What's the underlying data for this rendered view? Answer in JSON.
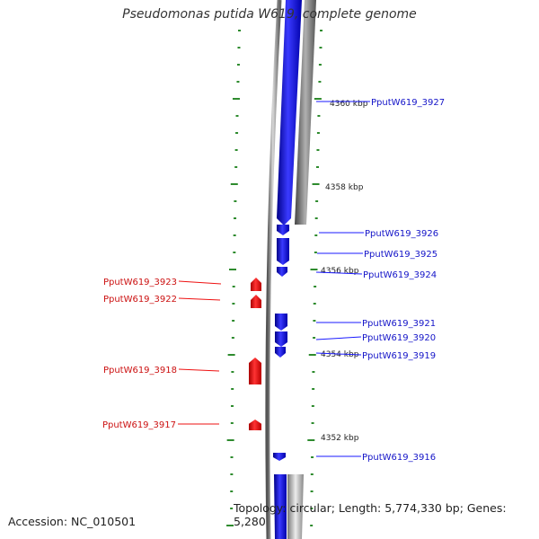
{
  "title": "Pseudomonas putida W619, complete genome",
  "footer": {
    "accession": "Accession: NC_010501",
    "summary": "Topology: circular; Length: 5,774,330 bp; Genes: 5,280"
  },
  "colors": {
    "forward_gene": "#1a1aff",
    "reverse_gene": "#ee1111",
    "tick": "#2e8b2e",
    "backbone": "#808080"
  },
  "scale_labels": [
    "4360 kbp",
    "4358 kbp",
    "4356 kbp",
    "4354 kbp",
    "4352 kbp"
  ],
  "forward_genes": [
    "PputW619_3927",
    "PputW619_3926",
    "PputW619_3925",
    "PputW619_3924",
    "PputW619_3921",
    "PputW619_3920",
    "PputW619_3919",
    "PputW619_3916"
  ],
  "reverse_genes": [
    "PputW619_3923",
    "PputW619_3922",
    "PputW619_3918",
    "PputW619_3917"
  ]
}
